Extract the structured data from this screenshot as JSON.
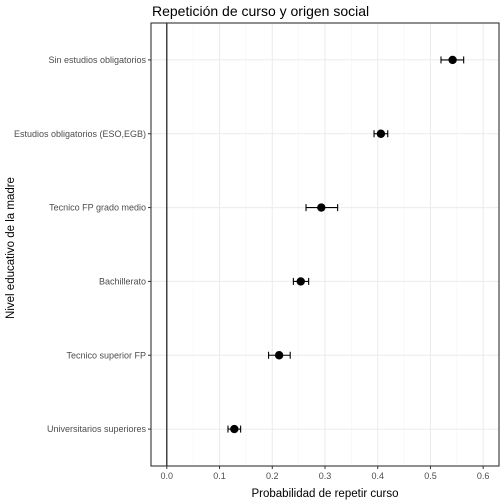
{
  "chart_data": {
    "type": "scatter",
    "title": "Repetición de curso y origen social",
    "xlabel": "Probabilidad de repetir curso",
    "ylabel": "Nivel educativo de la madre",
    "xlim": [
      -0.03,
      0.63
    ],
    "x_ticks": [
      0.0,
      0.1,
      0.2,
      0.3,
      0.4,
      0.5,
      0.6
    ],
    "x_tick_labels": [
      "0.0",
      "0.1",
      "0.2",
      "0.3",
      "0.4",
      "0.5",
      "0.6"
    ],
    "grid": true,
    "reference_line_x": 0.0,
    "categories": [
      "Sin estudios obligatorios",
      "Estudios obligatorios (ESO,EGB)",
      "Tecnico FP grado medio",
      "Bachillerato",
      "Tecnico superior FP",
      "Universitarios superiores"
    ],
    "values": [
      0.542,
      0.406,
      0.293,
      0.254,
      0.213,
      0.128
    ],
    "error_low": [
      0.52,
      0.393,
      0.264,
      0.24,
      0.193,
      0.116
    ],
    "error_high": [
      0.563,
      0.419,
      0.324,
      0.269,
      0.234,
      0.14
    ],
    "colors": {
      "point": "#000000",
      "grid_major": "#ebebeb",
      "grid_minor": "#f5f5f5",
      "panel_border": "#333333",
      "tick_label": "#4d4d4d"
    }
  }
}
